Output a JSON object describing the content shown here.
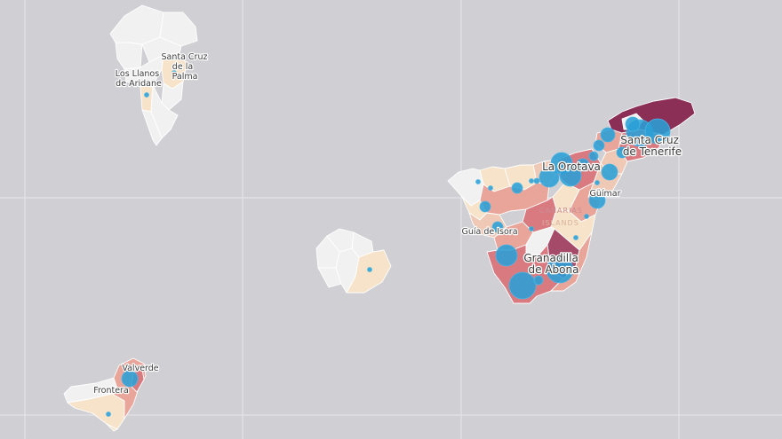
{
  "colors": {
    "sea": "#cfcfd4",
    "no_data": "#f1f1f1",
    "level_1": "#f7e3c9",
    "level_2": "#f0c9b6",
    "level_3": "#e9a59a",
    "level_4": "#d97a80",
    "level_5": "#a64a6a",
    "level_6": "#8b2f57",
    "bubble": "#2a9fd6"
  },
  "labels": {
    "la_palma_capital": "Santa Cruz de la Palma",
    "la_palma_capital_lines": [
      "Santa Cruz",
      "de la",
      "Palma"
    ],
    "los_llanos": "Los Llanos de Aridane",
    "los_llanos_lines": [
      "Los Llanos",
      "de Aridane"
    ],
    "santa_cruz_tenerife": "Santa Cruz de Tenerife",
    "santa_cruz_tenerife_lines": [
      "Santa Cruz",
      "de Tenerife"
    ],
    "la_orotava": "La Orotava",
    "guimar": "Güímar",
    "guia_de_isora": "Guía de Isora",
    "granadilla": "Granadilla de Abona",
    "granadilla_lines": [
      "Granadilla",
      "de Abona"
    ],
    "valverde": "Valverde",
    "frontera": "Frontera",
    "watermark_lines": [
      "CANARIAS",
      "ISLANDS"
    ]
  }
}
